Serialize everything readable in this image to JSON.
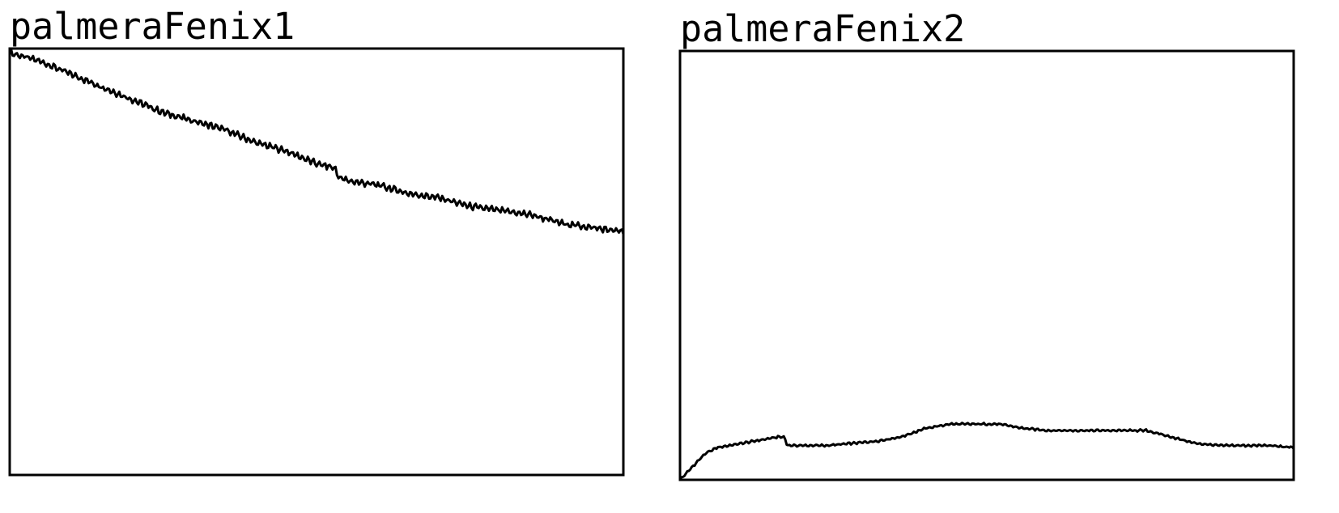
{
  "chart_data": [
    {
      "type": "line",
      "title": "palmeraFenix1",
      "xlabel": "",
      "ylabel": "",
      "xlim": [
        0,
        1
      ],
      "ylim": [
        0,
        1
      ],
      "grid": false,
      "series": [
        {
          "color": "#000000",
          "x": [
            0,
            0.05,
            0.1,
            0.15,
            0.2,
            0.25,
            0.3,
            0.35,
            0.4,
            0.45,
            0.5,
            0.53,
            0.535,
            0.55,
            0.6,
            0.65,
            0.7,
            0.75,
            0.8,
            0.85,
            0.9,
            0.95,
            1.0
          ],
          "y": [
            0.99,
            0.97,
            0.94,
            0.91,
            0.88,
            0.85,
            0.83,
            0.81,
            0.78,
            0.76,
            0.73,
            0.72,
            0.7,
            0.69,
            0.68,
            0.66,
            0.65,
            0.63,
            0.62,
            0.61,
            0.59,
            0.58,
            0.57
          ]
        }
      ]
    },
    {
      "type": "line",
      "title": "palmeraFenix2",
      "xlabel": "",
      "ylabel": "",
      "xlim": [
        0,
        1
      ],
      "ylim": [
        0,
        1
      ],
      "grid": false,
      "series": [
        {
          "color": "#000000",
          "x": [
            0,
            0.02,
            0.04,
            0.06,
            0.08,
            0.12,
            0.16,
            0.17,
            0.175,
            0.2,
            0.24,
            0.28,
            0.32,
            0.36,
            0.4,
            0.44,
            0.48,
            0.52,
            0.56,
            0.6,
            0.64,
            0.68,
            0.72,
            0.76,
            0.8,
            0.84,
            0.88,
            0.92,
            0.96,
            1.0
          ],
          "y": [
            0.0,
            0.03,
            0.06,
            0.075,
            0.08,
            0.09,
            0.1,
            0.1,
            0.08,
            0.08,
            0.08,
            0.085,
            0.09,
            0.1,
            0.12,
            0.13,
            0.13,
            0.13,
            0.12,
            0.115,
            0.115,
            0.115,
            0.115,
            0.115,
            0.1,
            0.085,
            0.08,
            0.08,
            0.08,
            0.075
          ]
        }
      ]
    }
  ]
}
